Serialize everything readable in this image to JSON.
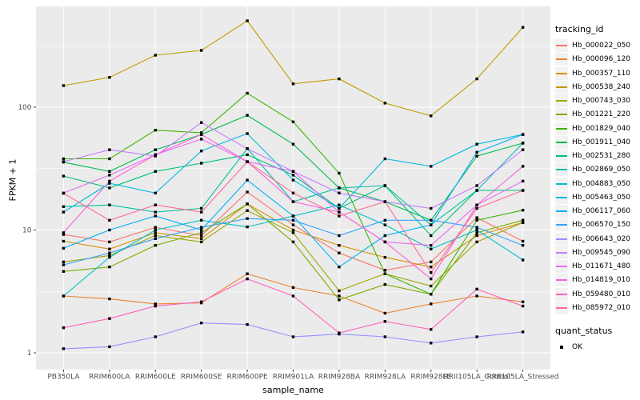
{
  "chart_data": {
    "type": "line",
    "title": "",
    "xlabel": "sample_name",
    "ylabel": "FPKM + 1",
    "y_scale": "log10",
    "y_ticks": [
      {
        "label": "1",
        "value": 1
      },
      {
        "label": "10",
        "value": 10
      },
      {
        "label": "100",
        "value": 100
      }
    ],
    "ylim": [
      0.72,
      660
    ],
    "grid": "on",
    "panel_bg": "#ebebeb",
    "grid_color": "#ffffff",
    "tick_label_color": "#4d4d4d",
    "point_color": "#000000",
    "legend_position": "right",
    "categories": [
      "PB350LA",
      "RRIM600LA",
      "RRIM600LE",
      "RRIM600SE",
      "RRIM600PE",
      "RRIM901LA",
      "RRIM928BA",
      "RRIM928LA",
      "RRIM928LE",
      "RRII105LA_Control",
      "RRII105LA_Stressed"
    ],
    "series": [
      {
        "name": "Hb_000022_050",
        "color": "#F8766D",
        "values": [
          9.2,
          8.0,
          10.5,
          9.0,
          20.4,
          11.0,
          6.5,
          4.7,
          5.5,
          12.6,
          8.1
        ]
      },
      {
        "name": "Hb_000096_120",
        "color": "#EA8331",
        "values": [
          2.9,
          2.75,
          2.5,
          2.55,
          4.4,
          3.4,
          2.9,
          2.1,
          2.5,
          2.9,
          2.6
        ]
      },
      {
        "name": "Hb_000357_110",
        "color": "#D89000",
        "values": [
          8.1,
          7.0,
          9.5,
          8.5,
          16.3,
          10.0,
          7.5,
          6.0,
          5.0,
          9.0,
          11.5
        ]
      },
      {
        "name": "Hb_000538_240",
        "color": "#C09B00",
        "values": [
          150,
          175,
          265,
          290,
          505,
          155,
          170,
          108,
          85,
          170,
          447
        ]
      },
      {
        "name": "Hb_000743_030",
        "color": "#A3A500",
        "values": [
          5.5,
          6.2,
          9.0,
          8.0,
          14.4,
          9.5,
          3.2,
          4.4,
          3.5,
          8.0,
          11.5
        ]
      },
      {
        "name": "Hb_001221_220",
        "color": "#7CAE00",
        "values": [
          4.6,
          5.0,
          7.5,
          9.5,
          16.3,
          8.0,
          2.7,
          3.6,
          3.0,
          9.5,
          12.0
        ]
      },
      {
        "name": "Hb_001829_040",
        "color": "#39B600",
        "values": [
          38,
          38,
          65,
          62,
          130,
          76,
          29,
          4.4,
          3.0,
          12.0,
          14.5
        ]
      },
      {
        "name": "Hb_001911_040",
        "color": "#00BB4E",
        "values": [
          35.7,
          30,
          45,
          60,
          86,
          50,
          22,
          17,
          12,
          40,
          51
        ]
      },
      {
        "name": "Hb_002531_280",
        "color": "#00BF7D",
        "values": [
          27.5,
          22,
          30,
          35,
          41,
          28,
          15,
          23,
          9.0,
          21,
          21
        ]
      },
      {
        "name": "Hb_002869_050",
        "color": "#00C1A3",
        "values": [
          15.5,
          16,
          14,
          15,
          46,
          17,
          22,
          23,
          11,
          21,
          51
        ]
      },
      {
        "name": "Hb_004883_050",
        "color": "#00BFC4",
        "values": [
          2.9,
          6.0,
          10.0,
          12.0,
          10.6,
          13.0,
          16.0,
          11.0,
          7.0,
          10.0,
          5.7
        ]
      },
      {
        "name": "Hb_005463_050",
        "color": "#00BAE0",
        "values": [
          14.0,
          24,
          20,
          44,
          61,
          25.5,
          15,
          38,
          33,
          50,
          60
        ]
      },
      {
        "name": "Hb_006117_060",
        "color": "#00B0F6",
        "values": [
          7.1,
          10,
          13,
          10,
          25.5,
          13,
          5.0,
          9.0,
          11.0,
          43,
          60
        ]
      },
      {
        "name": "Hb_006570_150",
        "color": "#35A2FF",
        "values": [
          5.2,
          6.5,
          8.5,
          10.5,
          12.4,
          12,
          9.0,
          12,
          12,
          10.5,
          7.5
        ]
      },
      {
        "name": "Hb_006643_020",
        "color": "#9590FF",
        "values": [
          1.08,
          1.12,
          1.35,
          1.75,
          1.7,
          1.35,
          1.42,
          1.35,
          1.2,
          1.35,
          1.48
        ]
      },
      {
        "name": "Hb_009545_090",
        "color": "#C77CFF",
        "values": [
          36,
          45,
          40,
          75,
          46,
          30,
          20,
          17,
          15,
          23,
          45
        ]
      },
      {
        "name": "Hb_011671_480",
        "color": "#E76BF3",
        "values": [
          20,
          28,
          41,
          55,
          36,
          30,
          14,
          8.0,
          7.5,
          16,
          25
        ]
      },
      {
        "name": "Hb_014819_010",
        "color": "#FA62DB",
        "values": [
          9.5,
          25,
          41,
          60,
          36,
          17,
          14,
          8.0,
          4.0,
          16,
          33
        ]
      },
      {
        "name": "Hb_059480_010",
        "color": "#FF62BC",
        "values": [
          1.6,
          1.9,
          2.4,
          2.6,
          4.0,
          2.9,
          1.45,
          1.8,
          1.55,
          3.3,
          2.4
        ]
      },
      {
        "name": "Hb_085972_010",
        "color": "#FF6A98",
        "values": [
          19.9,
          12,
          16,
          14,
          36,
          20,
          13,
          17,
          4.5,
          15,
          21
        ]
      }
    ],
    "legend": {
      "tracking_title": "tracking_id",
      "quant_title": "quant_status",
      "quant_items": [
        {
          "label": "OK",
          "shape": "square",
          "color": "#000000"
        }
      ]
    }
  }
}
